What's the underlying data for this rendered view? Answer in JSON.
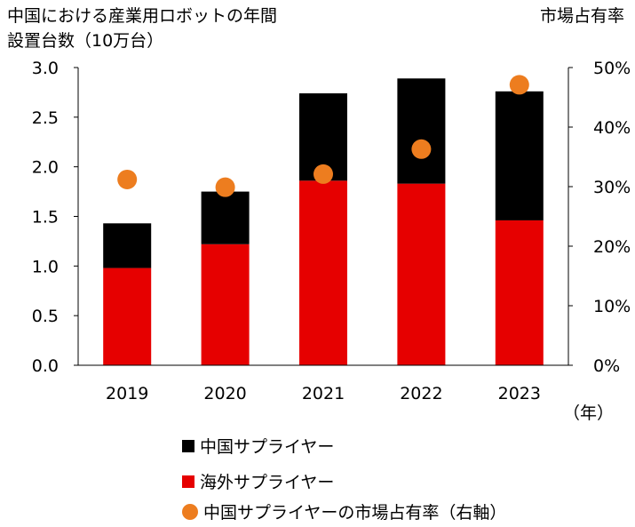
{
  "chart_data": {
    "type": "bar",
    "stacked": true,
    "left_axis_label_line1": "中国における産業用ロボットの年間",
    "left_axis_label_line2": "設置台数（10万台）",
    "right_axis_label": "市場占有率",
    "x_unit": "（年）",
    "categories": [
      "2019",
      "2020",
      "2021",
      "2022",
      "2023"
    ],
    "series": [
      {
        "name": "海外サプライヤー",
        "type": "bar",
        "axis": "left",
        "color": "#e60000",
        "values": [
          0.98,
          1.22,
          1.86,
          1.83,
          1.46
        ]
      },
      {
        "name": "中国サプライヤー",
        "type": "bar",
        "axis": "left",
        "color": "#000000",
        "values": [
          0.45,
          0.53,
          0.88,
          1.06,
          1.3
        ]
      },
      {
        "name": "中国サプライヤーの市場占有率（右軸）",
        "type": "scatter",
        "axis": "right",
        "color": "#ed7d1f",
        "values": [
          31.2,
          29.9,
          32.1,
          36.3,
          47.1
        ]
      }
    ],
    "ylim_left": [
      0,
      3.0
    ],
    "ylim_right": [
      0,
      50
    ],
    "left_ticks": [
      "0.0",
      "0.5",
      "1.0",
      "1.5",
      "2.0",
      "2.5",
      "3.0"
    ],
    "right_ticks": [
      "0%",
      "10%",
      "20%",
      "30%",
      "40%",
      "50%"
    ],
    "legend": [
      {
        "label": "中国サプライヤー",
        "color": "#000000",
        "marker": "square"
      },
      {
        "label": "海外サプライヤー",
        "color": "#e60000",
        "marker": "square"
      },
      {
        "label": "中国サプライヤーの市場占有率（右軸）",
        "color": "#ed7d1f",
        "marker": "circle"
      }
    ],
    "grid": false,
    "legend_position": "bottom"
  }
}
